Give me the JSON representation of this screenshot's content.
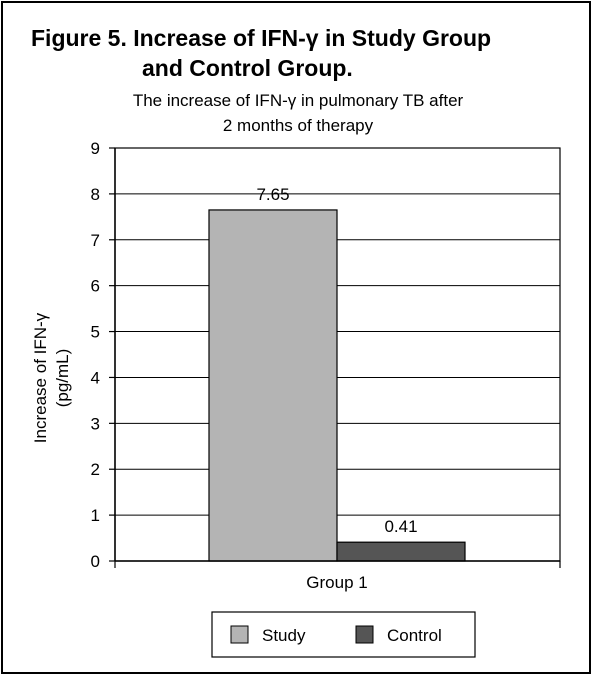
{
  "figure": {
    "title_line1": "Figure 5. Increase of IFN-γ in Study Group",
    "title_line2": "and Control Group."
  },
  "chart_data": {
    "type": "bar",
    "title_lines": [
      "The increase of IFN-γ in pulmonary TB after",
      "2 months of therapy"
    ],
    "ylabel_lines": [
      "Increase of IFN-γ",
      "(pg/mL)"
    ],
    "xlabel": "",
    "categories": [
      "Group 1"
    ],
    "series": [
      {
        "name": "Study",
        "values": [
          7.65
        ],
        "color": "#b4b4b4"
      },
      {
        "name": "Control",
        "values": [
          0.41
        ],
        "color": "#555555"
      }
    ],
    "ylim": [
      0,
      9
    ],
    "yticks": [
      0,
      1,
      2,
      3,
      4,
      5,
      6,
      7,
      8,
      9
    ],
    "data_labels": [
      "7.65",
      "0.41"
    ],
    "grid": true,
    "legend": "bottom"
  }
}
